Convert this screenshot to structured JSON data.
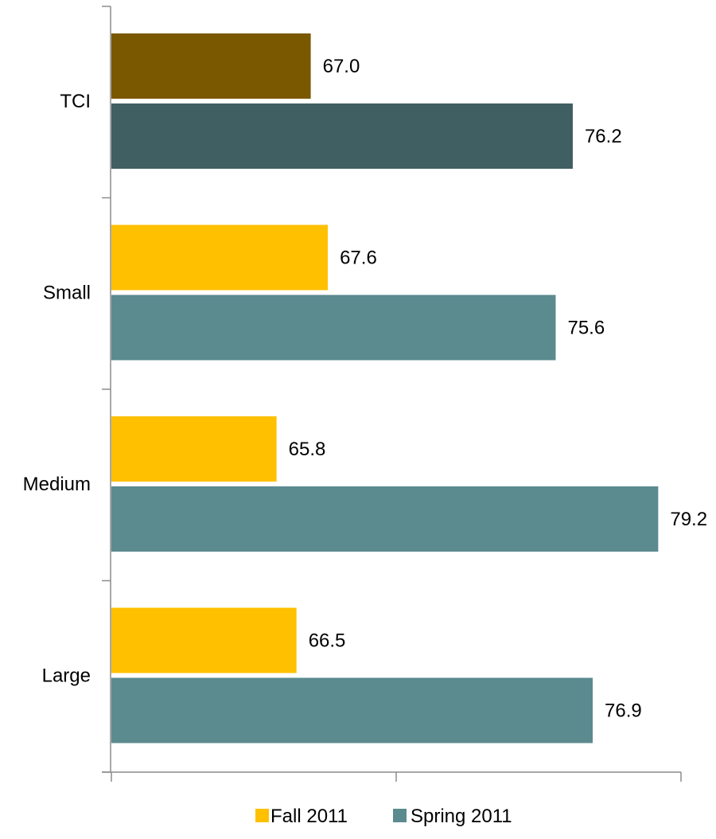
{
  "chart_data": {
    "type": "bar",
    "orientation": "horizontal",
    "categories": [
      "TCI",
      "Small",
      "Medium",
      "Large"
    ],
    "series": [
      {
        "name": "Fall 2011",
        "values": [
          67.0,
          67.6,
          65.8,
          66.5
        ],
        "color": "#FFC000"
      },
      {
        "name": "Spring 2011",
        "values": [
          76.2,
          75.6,
          79.2,
          76.9
        ],
        "color": "#5B8A8F"
      }
    ],
    "highlight_colors": {
      "TCI": [
        "#7A5800",
        "#3F5F62"
      ]
    },
    "value_labels": [
      [
        "67.0",
        "76.2"
      ],
      [
        "67.6",
        "75.6"
      ],
      [
        "65.8",
        "79.2"
      ],
      [
        "66.5",
        "76.9"
      ]
    ],
    "xlim": [
      60,
      80
    ],
    "title": "",
    "xlabel": "",
    "ylabel": "",
    "legend": {
      "position": "bottom",
      "entries": [
        "Fall 2011",
        "Spring 2011"
      ]
    },
    "grid": false
  }
}
